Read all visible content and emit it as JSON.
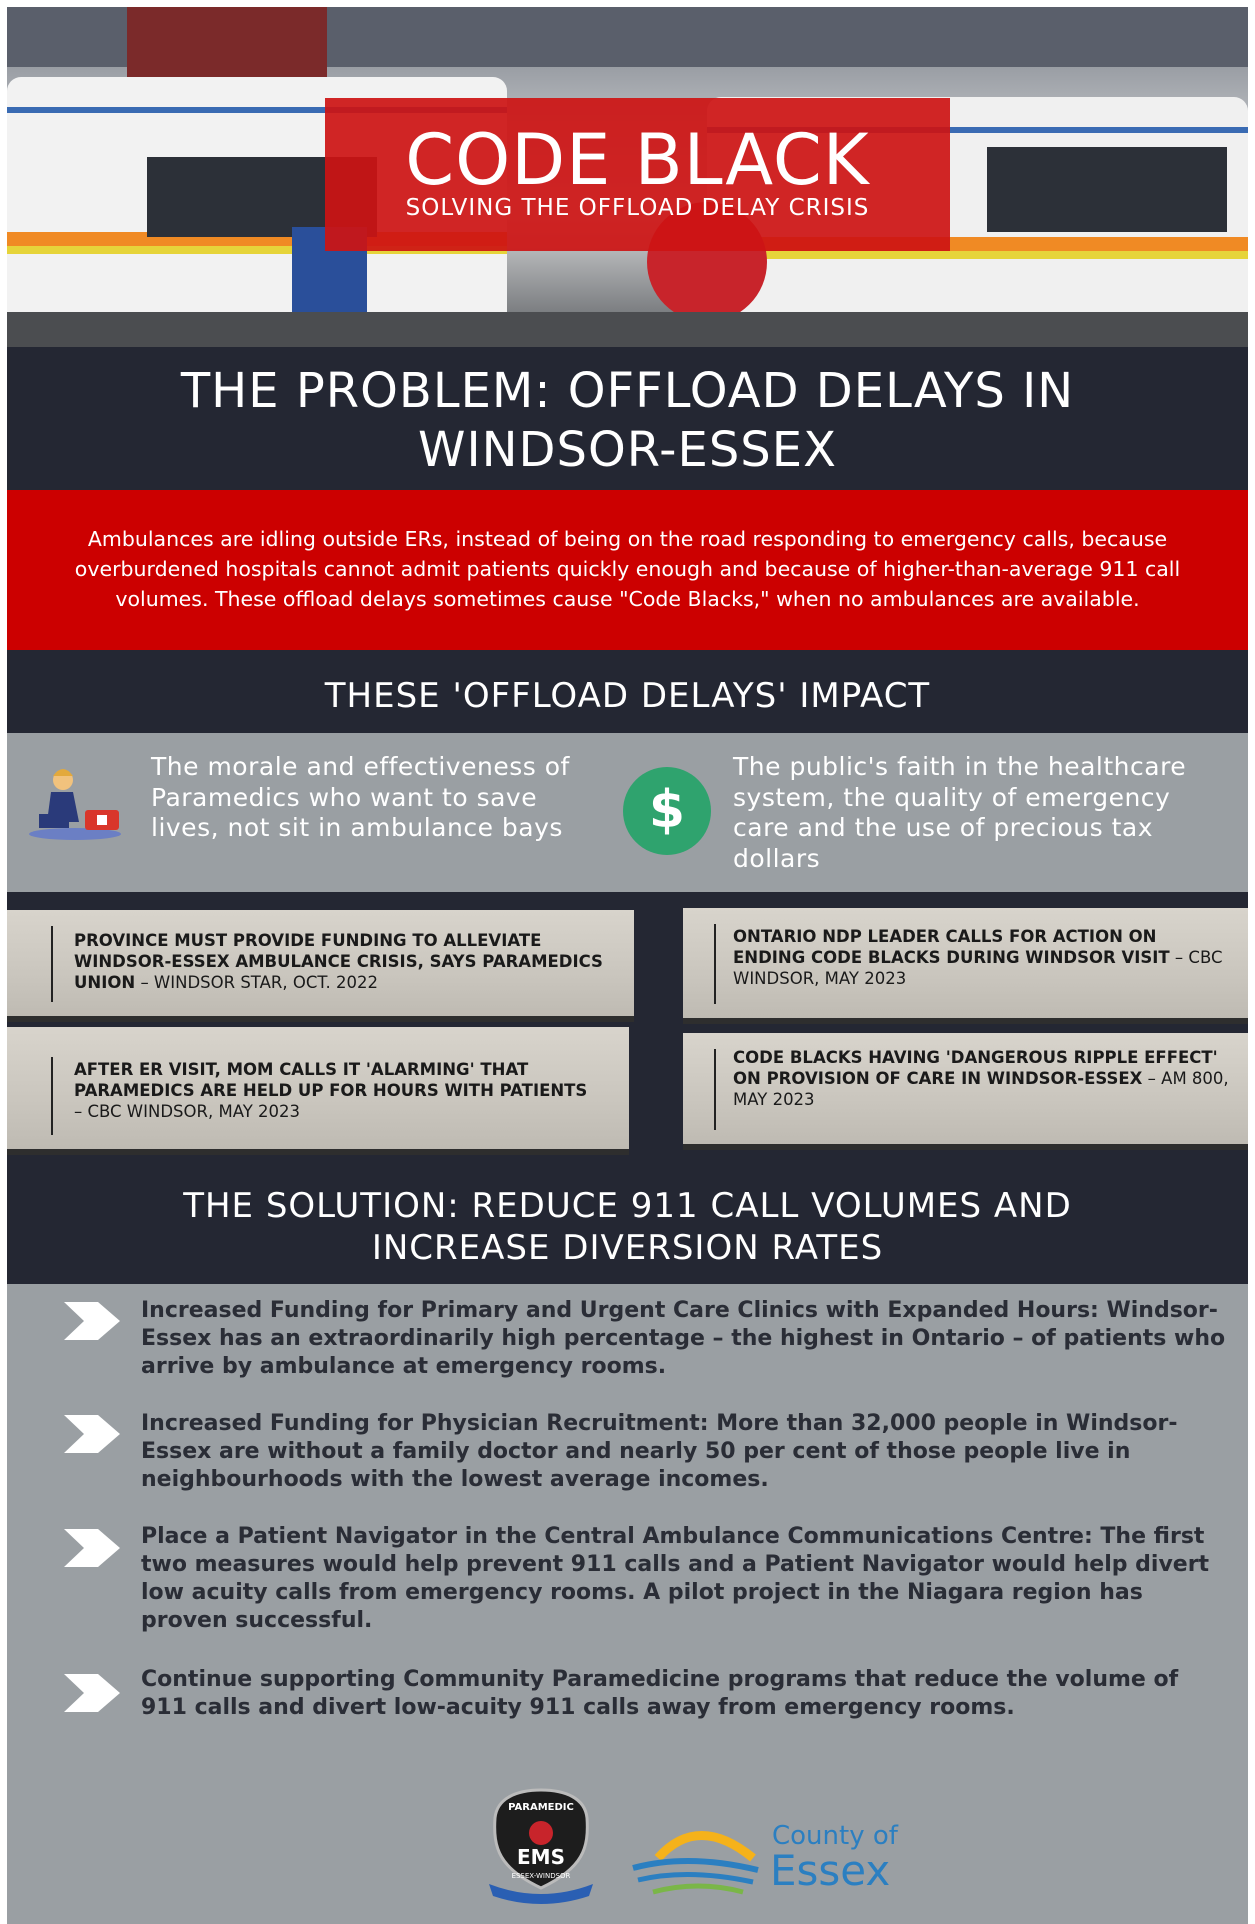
{
  "hero": {
    "title": "CODE BLACK",
    "subtitle": "SOLVING THE OFFLOAD DELAY CRISIS"
  },
  "problem": {
    "heading": "THE PROBLEM: OFFLOAD DELAYS IN WINDSOR-ESSEX",
    "text": "Ambulances are idling outside ERs, instead of being on the road responding to emergency calls, because overburdened hospitals cannot admit patients quickly enough and because of higher-than-average 911 call volumes. These offload delays sometimes cause \"Code Blacks,\" when no ambulances are available."
  },
  "impact": {
    "heading": "THESE 'OFFLOAD DELAYS' IMPACT",
    "items": [
      "The morale and effectiveness  of Paramedics who want to save lives, not sit in ambulance bays",
      "The public's faith in the healthcare system, the quality of emergency care and the use of precious tax dollars"
    ],
    "icon_symbol": "$"
  },
  "headlines": [
    {
      "headline": "PROVINCE MUST PROVIDE FUNDING TO ALLEVIATE WINDSOR-ESSEX AMBULANCE CRISIS, SAYS PARAMEDICS UNION",
      "source": "– WINDSOR STAR, OCT. 2022"
    },
    {
      "headline": "ONTARIO NDP LEADER CALLS FOR ACTION ON ENDING CODE BLACKS DURING WINDSOR VISIT",
      "source": "– CBC WINDSOR, MAY 2023"
    },
    {
      "headline": "AFTER ER VISIT, MOM CALLS IT 'ALARMING' THAT PARAMEDICS ARE HELD UP FOR HOURS WITH PATIENTS",
      "source": "– CBC WINDSOR, MAY 2023"
    },
    {
      "headline": "CODE BLACKS HAVING 'DANGEROUS RIPPLE EFFECT' ON PROVISION OF CARE IN WINDSOR-ESSEX",
      "source": "– AM 800, MAY 2023"
    }
  ],
  "solution": {
    "heading": "THE SOLUTION: REDUCE 911 CALL VOLUMES AND INCREASE DIVERSION RATES",
    "items": [
      "Increased Funding for Primary and Urgent Care Clinics with Expanded Hours: Windsor-Essex has an extraordinarily high percentage – the highest in Ontario – of patients who arrive by ambulance at emergency rooms.",
      "Increased Funding for Physician Recruitment: More than 32,000 people in Windsor-Essex are without a family doctor and nearly 50 per cent of those people live in neighbourhoods with the lowest average incomes.",
      "Place a Patient Navigator in the Central Ambulance Communications Centre: The first two measures would help prevent 911 calls and a Patient Navigator would help divert low acuity calls from emergency rooms. A pilot project in the Niagara region has proven successful.",
      "Continue supporting Community Paramedicine programs that reduce the volume of 911 calls and divert low-acuity 911 calls away from emergency rooms."
    ]
  },
  "logos": {
    "ems_top": "PARAMEDIC",
    "ems_main": "EMS",
    "ems_bottom": "ESSEX-WINDSOR",
    "county_line1": "County of",
    "county_line2": "Essex"
  }
}
